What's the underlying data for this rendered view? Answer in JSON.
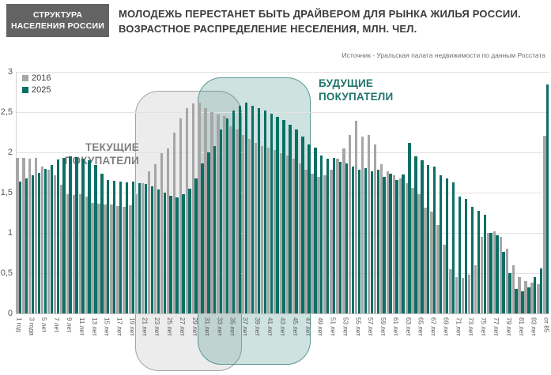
{
  "header": {
    "tag_line1": "СТРУКТУРА",
    "tag_line2": "НАСЕЛЕНИЯ РОССИИ",
    "title_line1": "МОЛОДЕЖЬ ПЕРЕСТАНЕТ БЫТЬ ДРАЙВЕРОМ ДЛЯ РЫНКА ЖИЛЬЯ РОССИИ.",
    "title_line2": "ВОЗРАСТНОЕ РАСПРЕДЕЛЕНИЕ НЕСЕЛЕНИЯ, МЛН. ЧЕЛ.",
    "source": "Источник - Уральская палата недвижимости по данным Росстата"
  },
  "legend": [
    {
      "label": "2016",
      "color": "#a6a6a6"
    },
    {
      "label": "2025",
      "color": "#0c6f65"
    }
  ],
  "annotations": {
    "current": {
      "line1": "ТЕКУЩИЕ",
      "line2": "ПОКУПАТЕЛИ",
      "from_age": 20,
      "to_age": 36,
      "color": "#7f7f7f"
    },
    "future": {
      "line1": "БУДУЩИЕ",
      "line2": "ПОКУПАТЕЛИ",
      "from_age": 30,
      "to_age": 47,
      "color": "#1f756c"
    }
  },
  "chart_data": {
    "type": "bar",
    "title": "Возрастное распределение населения, млн. чел.",
    "x_unit": "возраст, лет (ages 1–85, one pair of bars per year of age)",
    "x_start_age": 1,
    "x_tick_labels": [
      "1 год",
      "3 года",
      "5 лет",
      "7 лет",
      "9 лет",
      "11 лет",
      "13 лет",
      "15 лет",
      "17 лет",
      "19 лет",
      "21 лет",
      "23 лет",
      "25 лет",
      "27 лет",
      "29 лет",
      "31 лет",
      "33 лет",
      "35 лет",
      "37 лет",
      "39 лет",
      "41 лет",
      "43 лет",
      "45 лет",
      "47 лет",
      "49 лет",
      "51 лет",
      "53 лет",
      "55 лет",
      "57 лет",
      "59 лет",
      "61 лет",
      "63 лет",
      "65 лет",
      "67 лет",
      "69 лет",
      "71 лет",
      "73 лет",
      "75 лет",
      "77 лет",
      "79 лет",
      "81 лет",
      "83 лет",
      "от 85"
    ],
    "y_ticks": [
      "3",
      "2,5",
      "2",
      "1,5",
      "1",
      "0,5",
      "0"
    ],
    "ylim": [
      0,
      3
    ],
    "grid": "horizontal",
    "legend_position": "top-left",
    "series": [
      {
        "name": "2016",
        "color": "#a6a6a6",
        "values": [
          1.93,
          1.93,
          1.92,
          1.93,
          1.82,
          1.78,
          1.72,
          1.6,
          1.48,
          1.47,
          1.48,
          1.45,
          1.37,
          1.36,
          1.35,
          1.35,
          1.33,
          1.32,
          1.34,
          1.48,
          1.62,
          1.76,
          1.85,
          1.99,
          2.05,
          2.25,
          2.42,
          2.55,
          2.61,
          2.62,
          2.55,
          2.5,
          2.47,
          2.45,
          2.32,
          2.28,
          2.22,
          2.17,
          2.12,
          2.08,
          2.06,
          2.03,
          1.99,
          1.96,
          1.92,
          1.86,
          1.78,
          1.74,
          1.7,
          1.72,
          1.78,
          1.92,
          2.05,
          2.22,
          2.39,
          2.2,
          2.22,
          2.1,
          1.85,
          1.76,
          1.72,
          1.68,
          1.62,
          1.56,
          1.48,
          1.31,
          1.26,
          1.1,
          0.85,
          0.55,
          0.45,
          0.44,
          0.48,
          0.6,
          0.95,
          1.0,
          1.02,
          0.95,
          0.8,
          0.6,
          0.45,
          0.4,
          0.38,
          0.36,
          2.21
        ]
      },
      {
        "name": "2025",
        "color": "#0c6f65",
        "values": [
          1.64,
          1.68,
          1.72,
          1.75,
          1.79,
          1.84,
          1.91,
          1.93,
          1.95,
          1.94,
          1.92,
          1.9,
          1.84,
          1.74,
          1.66,
          1.65,
          1.64,
          1.63,
          1.64,
          1.62,
          1.61,
          1.58,
          1.54,
          1.5,
          1.46,
          1.44,
          1.48,
          1.55,
          1.68,
          1.86,
          2.0,
          2.08,
          2.28,
          2.42,
          2.52,
          2.58,
          2.62,
          2.58,
          2.55,
          2.52,
          2.48,
          2.44,
          2.4,
          2.34,
          2.28,
          2.2,
          2.1,
          2.06,
          1.96,
          1.92,
          1.93,
          1.88,
          1.86,
          1.82,
          1.78,
          1.8,
          1.76,
          1.78,
          1.7,
          1.74,
          1.66,
          1.73,
          2.12,
          1.95,
          1.9,
          1.84,
          1.82,
          1.72,
          1.68,
          1.63,
          1.45,
          1.42,
          1.32,
          1.27,
          1.23,
          1.0,
          0.97,
          0.76,
          0.5,
          0.3,
          0.27,
          0.32,
          0.45,
          0.56,
          2.84
        ]
      }
    ]
  }
}
